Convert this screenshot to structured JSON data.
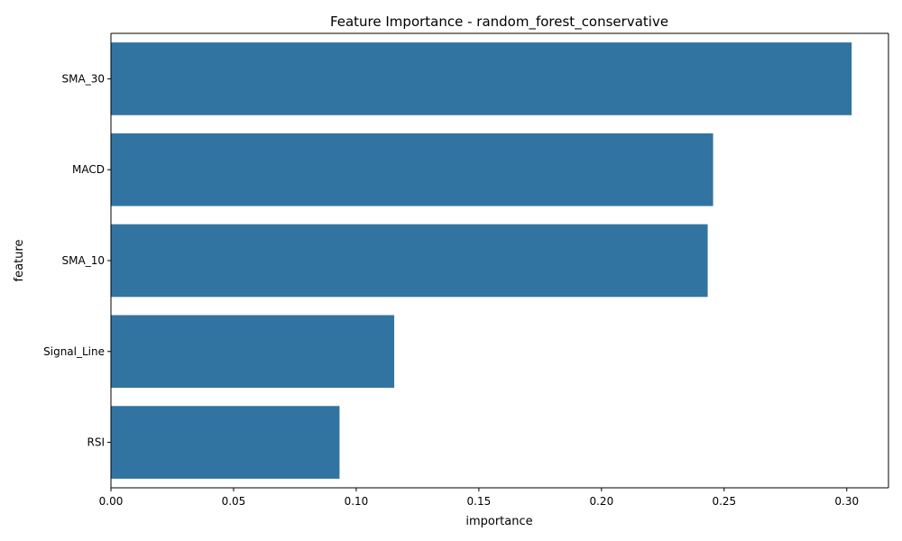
{
  "chart_data": {
    "type": "bar",
    "orientation": "horizontal",
    "title": "Feature Importance - random_forest_conservative",
    "xlabel": "importance",
    "ylabel": "feature",
    "categories": [
      "SMA_30",
      "MACD",
      "SMA_10",
      "Signal_Line",
      "RSI"
    ],
    "values": [
      0.302,
      0.2455,
      0.2433,
      0.1155,
      0.0932
    ],
    "xlim": [
      0.0,
      0.317
    ],
    "xticks": [
      0.0,
      0.05,
      0.1,
      0.15,
      0.2,
      0.25,
      0.3
    ],
    "xtick_labels": [
      "0.00",
      "0.05",
      "0.10",
      "0.15",
      "0.20",
      "0.25",
      "0.30"
    ],
    "grid": false,
    "legend": "none",
    "bar_color": "#3274a1"
  }
}
